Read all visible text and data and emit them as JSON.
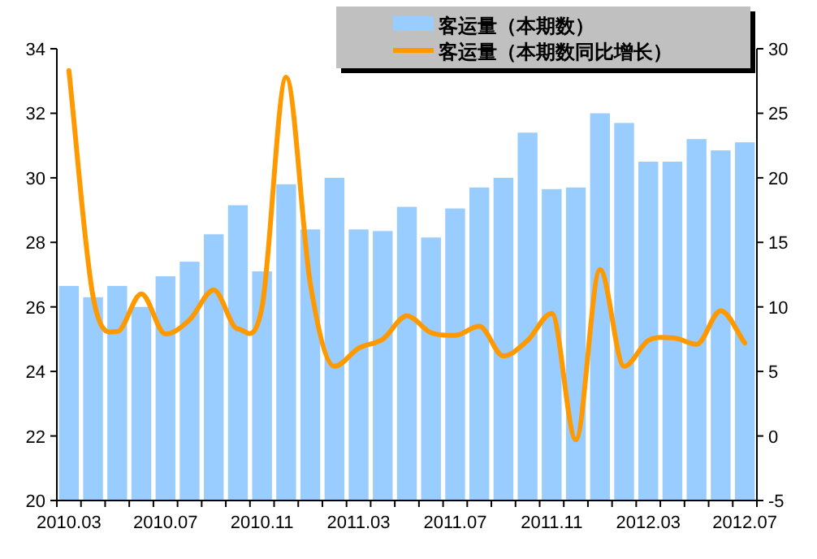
{
  "chart_data": {
    "type": "bar",
    "categories": [
      "2010.03",
      null,
      null,
      null,
      "2010.07",
      null,
      null,
      null,
      "2010.11",
      null,
      null,
      null,
      "2011.03",
      null,
      null,
      null,
      "2011.07",
      null,
      null,
      null,
      "2011.11",
      null,
      null,
      null,
      "2012.03",
      null,
      null,
      null,
      "2012.07"
    ],
    "series": [
      {
        "name": "客运量（本期数）",
        "color": "#99ccff",
        "values": [
          26.65,
          26.3,
          26.65,
          26.0,
          26.95,
          27.4,
          28.25,
          29.15,
          27.1,
          29.8,
          28.4,
          30.0,
          28.4,
          28.35,
          29.1,
          28.15,
          29.05,
          29.7,
          30.0,
          31.4,
          29.65,
          29.7,
          32.0,
          31.7,
          30.5,
          30.5,
          31.2,
          30.85,
          31.1
        ]
      },
      {
        "name": "客运量（本期数同比增长）",
        "color": "#ff9900",
        "type": "line",
        "axis": "y2",
        "values": [
          28.3,
          10.8,
          8.1,
          11.0,
          7.9,
          9.0,
          11.3,
          8.3,
          10.0,
          27.8,
          11.8,
          5.4,
          6.8,
          7.5,
          9.3,
          8.0,
          7.8,
          8.5,
          6.2,
          7.4,
          9.5,
          -0.3,
          12.9,
          5.4,
          7.4,
          7.6,
          7.1,
          9.7,
          7.2
        ]
      }
    ],
    "ylim": [
      20,
      34
    ],
    "yticks": [
      20,
      22,
      24,
      26,
      28,
      30,
      32,
      34
    ],
    "y2lim": [
      -5,
      30
    ],
    "y2ticks": [
      -5,
      0,
      5,
      10,
      15,
      20,
      25,
      30
    ],
    "legend": "top right"
  }
}
